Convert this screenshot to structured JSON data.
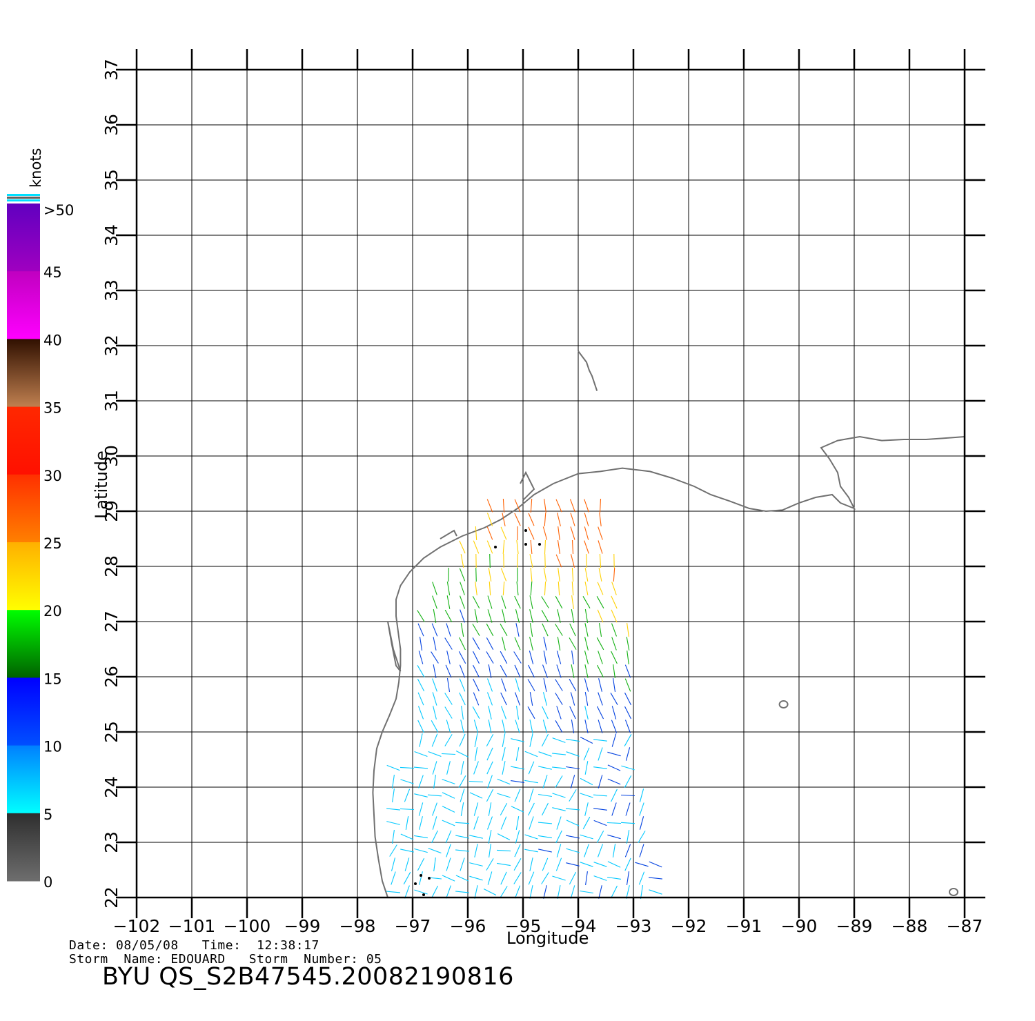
{
  "map": {
    "x_axis_label": "Longitude",
    "y_axis_label": "Latitude",
    "lon_ticks": [
      "-102",
      "-101",
      "-100",
      "-99",
      "-98",
      "-97",
      "-96",
      "-95",
      "-94",
      "-93",
      "-92",
      "-91",
      "-90",
      "-89",
      "-88",
      "-87"
    ],
    "lat_ticks": [
      "22",
      "23",
      "24",
      "25",
      "26",
      "27",
      "28",
      "29",
      "30",
      "31",
      "32",
      "33",
      "34",
      "35",
      "36",
      "37"
    ],
    "lon_range": [
      -102,
      -87
    ],
    "lat_range": [
      22,
      37
    ],
    "grid": true,
    "coastline_color": "#707070"
  },
  "colorbar": {
    "unit": "knots",
    "labels": [
      "0",
      "5",
      "10",
      "15",
      "20",
      "25",
      "30",
      "35",
      "40",
      "45",
      ">50"
    ],
    "colors": {
      "0-5": [
        "#6e6e6e",
        "#2e2e2e"
      ],
      "5-10": [
        "#00ffff",
        "#0080ff"
      ],
      "10-15": [
        "#0050ff",
        "#0000ff"
      ],
      "15-20": [
        "#006000",
        "#00ff00"
      ],
      "20-25": [
        "#ffff00",
        "#ffb000"
      ],
      "25-30": [
        "#ff8000",
        "#ff3000"
      ],
      "30-35": [
        "#ff1000",
        "#ff2800"
      ],
      "35-40": [
        "#c08050",
        "#301000"
      ],
      "40-45": [
        "#ff00ff",
        "#c000c0"
      ],
      "45-50": [
        "#a000c0",
        "#6000c0"
      ]
    }
  },
  "info": {
    "date_label": "Date:",
    "date_value": "08/05/08",
    "time_label": "Time:",
    "time_value": "12:38:17",
    "storm_name_label": "Storm  Name:",
    "storm_name_value": "EDOUARD",
    "storm_number_label": "Storm  Number:",
    "storm_number_value": "05",
    "product_id": "BYU  QS_S2B47545.20082190816"
  }
}
